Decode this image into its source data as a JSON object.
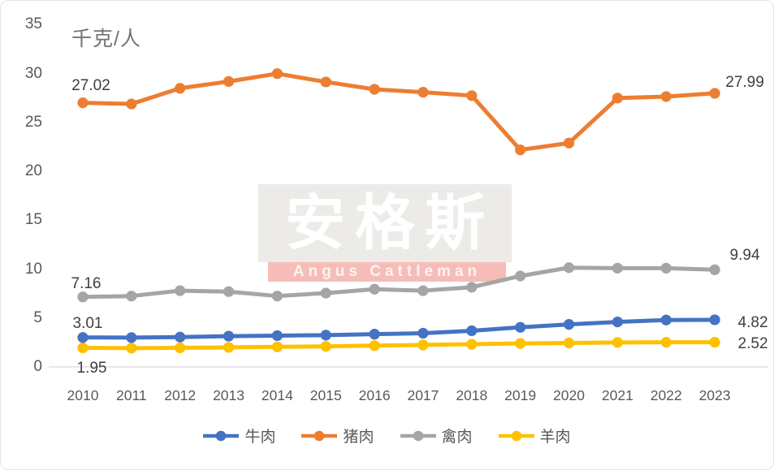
{
  "unit_label": "千克/人",
  "watermark": {
    "cn": "安格斯",
    "en": "Angus Cattleman"
  },
  "chart_data": {
    "type": "line",
    "title": "",
    "ylabel": "千克/人",
    "xlabel": "",
    "ylim": [
      0,
      35
    ],
    "y_ticks": [
      0,
      5,
      10,
      15,
      20,
      25,
      30,
      35
    ],
    "grid": false,
    "legend_position": "bottom",
    "categories": [
      "2010",
      "2011",
      "2012",
      "2013",
      "2014",
      "2015",
      "2016",
      "2017",
      "2018",
      "2019",
      "2020",
      "2021",
      "2022",
      "2023"
    ],
    "series": [
      {
        "key": "beef",
        "name": "牛肉",
        "color": "#4472C4",
        "values": [
          3.01,
          3.0,
          3.05,
          3.15,
          3.2,
          3.25,
          3.35,
          3.45,
          3.7,
          4.05,
          4.35,
          4.6,
          4.8,
          4.82
        ]
      },
      {
        "key": "pork",
        "name": "猪肉",
        "color": "#ED7D31",
        "values": [
          27.02,
          26.9,
          28.5,
          29.2,
          30.0,
          29.15,
          28.4,
          28.1,
          27.75,
          22.2,
          22.9,
          27.5,
          27.65,
          27.99
        ]
      },
      {
        "key": "poultry",
        "name": "禽肉",
        "color": "#A5A5A5",
        "values": [
          7.16,
          7.25,
          7.8,
          7.7,
          7.25,
          7.55,
          7.95,
          7.8,
          8.15,
          9.3,
          10.15,
          10.1,
          10.1,
          9.94
        ]
      },
      {
        "key": "lamb",
        "name": "羊肉",
        "color": "#FFC000",
        "values": [
          1.95,
          1.92,
          1.95,
          2.0,
          2.05,
          2.1,
          2.18,
          2.25,
          2.32,
          2.4,
          2.45,
          2.5,
          2.52,
          2.52
        ]
      }
    ],
    "point_labels": [
      {
        "series": "pork",
        "index": 0,
        "text": "27.02"
      },
      {
        "series": "pork",
        "index": 13,
        "text": "27.99"
      },
      {
        "series": "poultry",
        "index": 0,
        "text": "7.16"
      },
      {
        "series": "poultry",
        "index": 13,
        "text": "9.94"
      },
      {
        "series": "beef",
        "index": 0,
        "text": "3.01"
      },
      {
        "series": "beef",
        "index": 13,
        "text": "4.82"
      },
      {
        "series": "lamb",
        "index": 0,
        "text": "1.95"
      },
      {
        "series": "lamb",
        "index": 13,
        "text": "2.52"
      }
    ]
  }
}
